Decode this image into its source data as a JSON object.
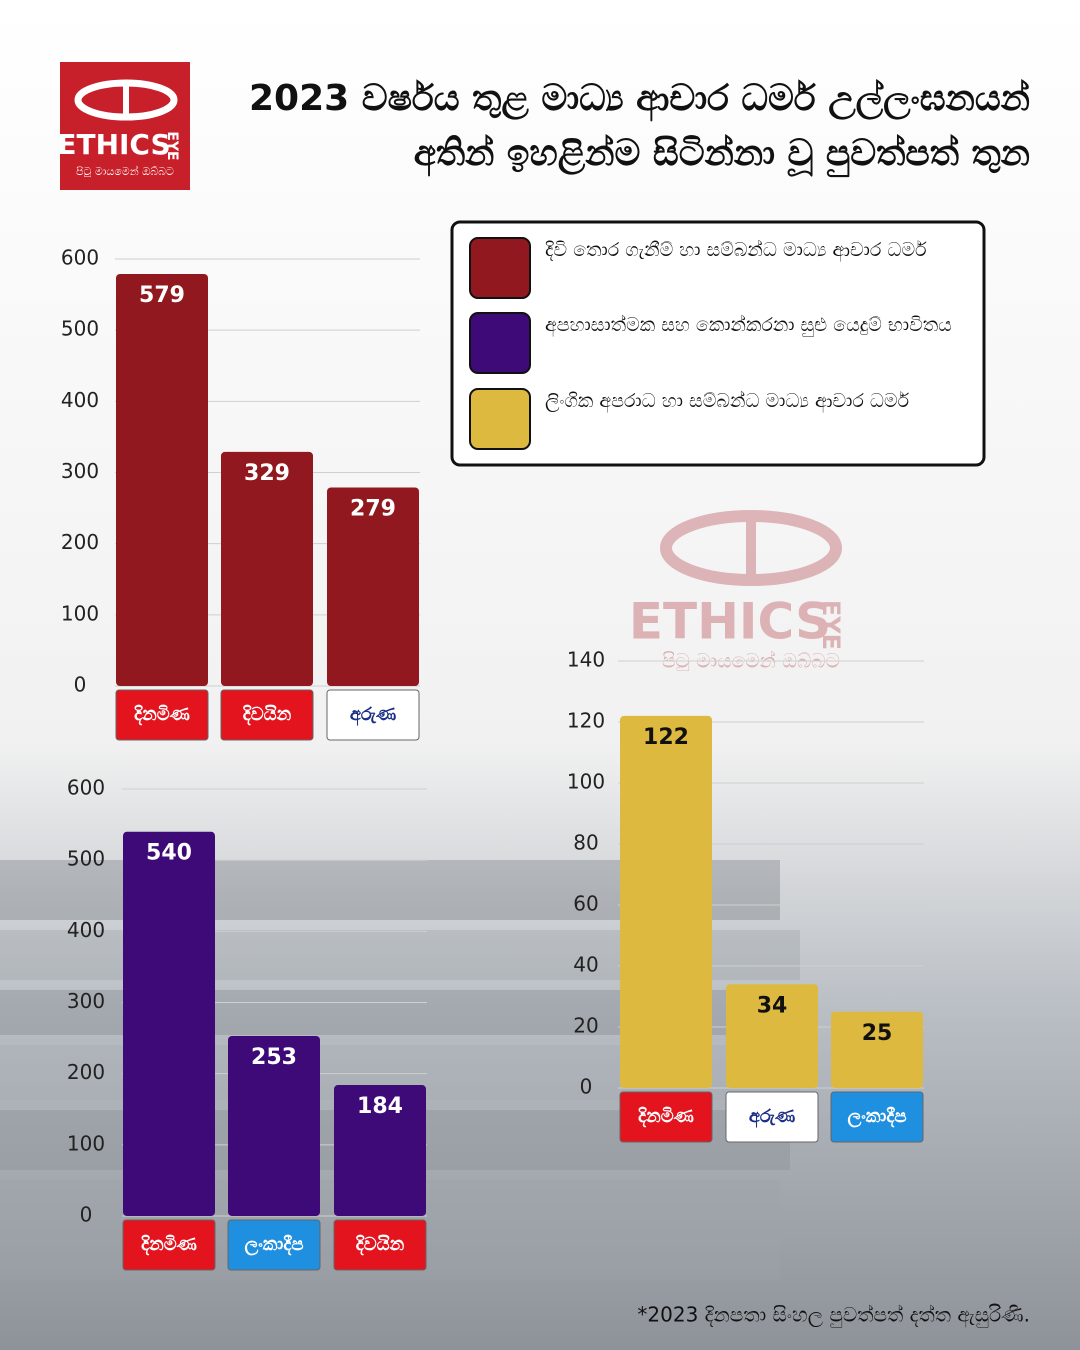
{
  "header": {
    "title_lines": [
      "2023 වර්ෂය තුළ මාධ්‍ය ආචාර ධර්ම උල්ලංඝනයන්",
      "අතින් ඉහළින්ම සිටින්නා වූ පුවත්පත් තුන"
    ],
    "logo": {
      "name": "ETHICS",
      "name_side": "EYE",
      "tagline": "පිටු මායමෙන් ඔබ්බට"
    }
  },
  "chart_data": [
    {
      "type": "bar",
      "categories": [
        "දිනමිණ",
        "දිවයින",
        "අරුණ"
      ],
      "series": [
        {
          "name": "දිවි තොර ගැනීම් හා සම්බන්ධ මාධ්‍ය ආචාර ධර්ම",
          "color": "#921820",
          "values": [
            579,
            329,
            279
          ]
        }
      ],
      "ylim": [
        0,
        600
      ],
      "yticks": [
        0,
        100,
        200,
        300,
        400,
        500,
        600
      ],
      "grid": true
    },
    {
      "type": "bar",
      "categories": [
        "දිනමිණ",
        "ලංකාදීප",
        "දිවයින"
      ],
      "series": [
        {
          "name": "අපහාසාත්මක සහ කොන්කරනා සුළු යෙදුම් භාවිතය",
          "color": "#3d0a78",
          "values": [
            540,
            253,
            184
          ]
        }
      ],
      "ylim": [
        0,
        600
      ],
      "yticks": [
        0,
        100,
        200,
        300,
        400,
        500,
        600
      ],
      "grid": true
    },
    {
      "type": "bar",
      "categories": [
        "දිනමිණ",
        "අරුණ",
        "ලංකාදීප"
      ],
      "series": [
        {
          "name": "ලිංගික අපරාධ හා සම්බන්ධ මාධ්‍ය ආචාර ධර්ම",
          "color": "#ddb940",
          "values": [
            122,
            34,
            25
          ]
        }
      ],
      "ylim": [
        0,
        140
      ],
      "yticks": [
        0,
        20,
        40,
        60,
        80,
        100,
        120,
        140
      ],
      "grid": true
    }
  ],
  "footnote": "*2023 දිනපතා සිංහල පුවත්පත් දත්ත ඇසුරිණි."
}
